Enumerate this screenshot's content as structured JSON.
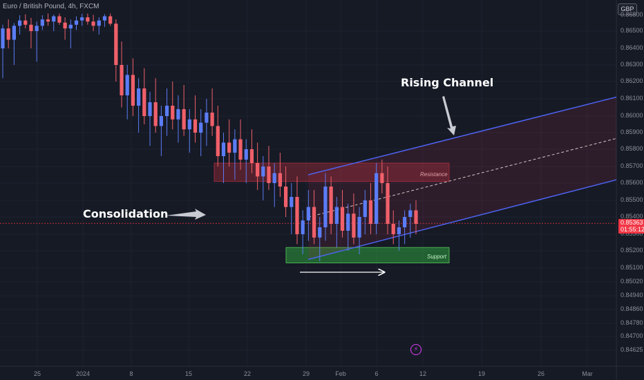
{
  "header": {
    "symbol_line": "Euro / British Pound, 4h, FXCM"
  },
  "currency_button": "GBP",
  "price_axis": {
    "labels": [
      "0.86800",
      "0.86500",
      "0.86400",
      "0.86300",
      "0.86200",
      "0.86100",
      "0.86000",
      "0.85900",
      "0.85800",
      "0.85700",
      "0.85600",
      "0.85500",
      "0.85400",
      "0.85300",
      "0.85200",
      "0.85100",
      "0.85020",
      "0.84940",
      "0.84860",
      "0.84780",
      "0.84700",
      "0.84625"
    ]
  },
  "time_axis": {
    "labels": [
      "25",
      "2024",
      "8",
      "15",
      "22",
      "29",
      "Feb",
      "6",
      "12",
      "19",
      "26",
      "Mar"
    ]
  },
  "current_price": {
    "value": "0.85363",
    "countdown": "01:55:12",
    "color": "#f23645"
  },
  "annotations": {
    "rising_channel": "Rising Channel",
    "consolidation": "Consolidation",
    "resistance": "Resistance",
    "support": "Support"
  },
  "colors": {
    "background": "#161a25",
    "up": "#5b7cf5",
    "down": "#f0606a",
    "channel_line": "#4d63f0",
    "resistance_fill": "#f23645",
    "support_fill": "#2e9e3e"
  },
  "icons": {
    "alert": "lightning-icon"
  },
  "chart_data": {
    "type": "candlestick",
    "symbol": "Euro / British Pound",
    "interval": "4h",
    "source": "FXCM",
    "y_scale": "price (GBP)",
    "current_price": 0.85363,
    "zones": [
      {
        "name": "Resistance",
        "top": 0.8572,
        "bottom": 0.8561
      },
      {
        "name": "Support",
        "top": 0.8522,
        "bottom": 0.8513
      }
    ],
    "channel": {
      "name": "Rising Channel",
      "upper": [
        0.8565,
        0.8611
      ],
      "lower": [
        0.8515,
        0.8562
      ]
    },
    "series": [
      {
        "o": 0.864,
        "h": 0.8662,
        "l": 0.8622,
        "c": 0.8655
      },
      {
        "o": 0.8655,
        "h": 0.8672,
        "l": 0.864,
        "c": 0.8645
      },
      {
        "o": 0.8645,
        "h": 0.8665,
        "l": 0.863,
        "c": 0.866
      },
      {
        "o": 0.866,
        "h": 0.868,
        "l": 0.8648,
        "c": 0.867
      },
      {
        "o": 0.867,
        "h": 0.8685,
        "l": 0.8655,
        "c": 0.8662
      },
      {
        "o": 0.8662,
        "h": 0.8675,
        "l": 0.864,
        "c": 0.865
      },
      {
        "o": 0.865,
        "h": 0.8668,
        "l": 0.8632,
        "c": 0.866
      },
      {
        "o": 0.866,
        "h": 0.868,
        "l": 0.8652,
        "c": 0.8672
      },
      {
        "o": 0.8672,
        "h": 0.869,
        "l": 0.866,
        "c": 0.8668
      },
      {
        "o": 0.8668,
        "h": 0.8684,
        "l": 0.865,
        "c": 0.8678
      },
      {
        "o": 0.8678,
        "h": 0.869,
        "l": 0.8662,
        "c": 0.8666
      },
      {
        "o": 0.8666,
        "h": 0.8676,
        "l": 0.8645,
        "c": 0.8655
      },
      {
        "o": 0.8655,
        "h": 0.8672,
        "l": 0.864,
        "c": 0.8662
      },
      {
        "o": 0.8662,
        "h": 0.8678,
        "l": 0.8652,
        "c": 0.867
      },
      {
        "o": 0.867,
        "h": 0.8688,
        "l": 0.866,
        "c": 0.8676
      },
      {
        "o": 0.8676,
        "h": 0.869,
        "l": 0.8662,
        "c": 0.8668
      },
      {
        "o": 0.8668,
        "h": 0.8682,
        "l": 0.865,
        "c": 0.866
      },
      {
        "o": 0.866,
        "h": 0.8676,
        "l": 0.8648,
        "c": 0.867
      },
      {
        "o": 0.867,
        "h": 0.8686,
        "l": 0.8658,
        "c": 0.8678
      },
      {
        "o": 0.8678,
        "h": 0.869,
        "l": 0.866,
        "c": 0.8664
      },
      {
        "o": 0.8664,
        "h": 0.8672,
        "l": 0.862,
        "c": 0.863
      },
      {
        "o": 0.863,
        "h": 0.8644,
        "l": 0.8605,
        "c": 0.8612
      },
      {
        "o": 0.8612,
        "h": 0.863,
        "l": 0.8598,
        "c": 0.8624
      },
      {
        "o": 0.8624,
        "h": 0.8634,
        "l": 0.86,
        "c": 0.8606
      },
      {
        "o": 0.8606,
        "h": 0.8622,
        "l": 0.859,
        "c": 0.8616
      },
      {
        "o": 0.8616,
        "h": 0.8628,
        "l": 0.8595,
        "c": 0.86
      },
      {
        "o": 0.86,
        "h": 0.8614,
        "l": 0.8582,
        "c": 0.8608
      },
      {
        "o": 0.8608,
        "h": 0.8622,
        "l": 0.859,
        "c": 0.8594
      },
      {
        "o": 0.8594,
        "h": 0.8606,
        "l": 0.8576,
        "c": 0.86
      },
      {
        "o": 0.86,
        "h": 0.8616,
        "l": 0.8588,
        "c": 0.8606
      },
      {
        "o": 0.8606,
        "h": 0.862,
        "l": 0.8592,
        "c": 0.8598
      },
      {
        "o": 0.8598,
        "h": 0.8612,
        "l": 0.8584,
        "c": 0.8604
      },
      {
        "o": 0.8604,
        "h": 0.8618,
        "l": 0.8588,
        "c": 0.8592
      },
      {
        "o": 0.8592,
        "h": 0.8604,
        "l": 0.8578,
        "c": 0.8598
      },
      {
        "o": 0.8598,
        "h": 0.8612,
        "l": 0.8584,
        "c": 0.859
      },
      {
        "o": 0.859,
        "h": 0.8604,
        "l": 0.8576,
        "c": 0.8596
      },
      {
        "o": 0.8596,
        "h": 0.861,
        "l": 0.8582,
        "c": 0.8602
      },
      {
        "o": 0.8602,
        "h": 0.8616,
        "l": 0.8588,
        "c": 0.8594
      },
      {
        "o": 0.8594,
        "h": 0.8606,
        "l": 0.857,
        "c": 0.8576
      },
      {
        "o": 0.8576,
        "h": 0.859,
        "l": 0.856,
        "c": 0.8584
      },
      {
        "o": 0.8584,
        "h": 0.8598,
        "l": 0.857,
        "c": 0.8578
      },
      {
        "o": 0.8578,
        "h": 0.8592,
        "l": 0.8562,
        "c": 0.8586
      },
      {
        "o": 0.8586,
        "h": 0.8598,
        "l": 0.8568,
        "c": 0.8574
      },
      {
        "o": 0.8574,
        "h": 0.8586,
        "l": 0.856,
        "c": 0.858
      },
      {
        "o": 0.858,
        "h": 0.8592,
        "l": 0.8566,
        "c": 0.8572
      },
      {
        "o": 0.8572,
        "h": 0.8584,
        "l": 0.8556,
        "c": 0.8564
      },
      {
        "o": 0.8564,
        "h": 0.8576,
        "l": 0.855,
        "c": 0.857
      },
      {
        "o": 0.857,
        "h": 0.8582,
        "l": 0.8556,
        "c": 0.856
      },
      {
        "o": 0.856,
        "h": 0.8572,
        "l": 0.8546,
        "c": 0.8566
      },
      {
        "o": 0.8566,
        "h": 0.8578,
        "l": 0.8552,
        "c": 0.8558
      },
      {
        "o": 0.8558,
        "h": 0.857,
        "l": 0.854,
        "c": 0.8546
      },
      {
        "o": 0.8546,
        "h": 0.856,
        "l": 0.853,
        "c": 0.8552
      },
      {
        "o": 0.8552,
        "h": 0.8564,
        "l": 0.8524,
        "c": 0.853
      },
      {
        "o": 0.853,
        "h": 0.8544,
        "l": 0.8518,
        "c": 0.8538
      },
      {
        "o": 0.8538,
        "h": 0.8556,
        "l": 0.8526,
        "c": 0.8546
      },
      {
        "o": 0.8546,
        "h": 0.8556,
        "l": 0.8524,
        "c": 0.8528
      },
      {
        "o": 0.8528,
        "h": 0.854,
        "l": 0.8514,
        "c": 0.8534
      },
      {
        "o": 0.8534,
        "h": 0.8566,
        "l": 0.8526,
        "c": 0.8558
      },
      {
        "o": 0.8558,
        "h": 0.8564,
        "l": 0.853,
        "c": 0.8536
      },
      {
        "o": 0.8536,
        "h": 0.8552,
        "l": 0.8522,
        "c": 0.8546
      },
      {
        "o": 0.8546,
        "h": 0.8556,
        "l": 0.8528,
        "c": 0.8532
      },
      {
        "o": 0.8532,
        "h": 0.8548,
        "l": 0.852,
        "c": 0.8542
      },
      {
        "o": 0.8542,
        "h": 0.8554,
        "l": 0.8524,
        "c": 0.8528
      },
      {
        "o": 0.8528,
        "h": 0.8546,
        "l": 0.8518,
        "c": 0.854
      },
      {
        "o": 0.854,
        "h": 0.8556,
        "l": 0.853,
        "c": 0.855
      },
      {
        "o": 0.855,
        "h": 0.856,
        "l": 0.853,
        "c": 0.8536
      },
      {
        "o": 0.8536,
        "h": 0.8572,
        "l": 0.853,
        "c": 0.8566
      },
      {
        "o": 0.8566,
        "h": 0.8574,
        "l": 0.8554,
        "c": 0.856
      },
      {
        "o": 0.856,
        "h": 0.857,
        "l": 0.853,
        "c": 0.8536
      },
      {
        "o": 0.8536,
        "h": 0.8544,
        "l": 0.8524,
        "c": 0.853
      },
      {
        "o": 0.853,
        "h": 0.8538,
        "l": 0.852,
        "c": 0.8534
      },
      {
        "o": 0.8534,
        "h": 0.8544,
        "l": 0.8524,
        "c": 0.854
      },
      {
        "o": 0.854,
        "h": 0.8548,
        "l": 0.8528,
        "c": 0.8544
      },
      {
        "o": 0.8544,
        "h": 0.855,
        "l": 0.853,
        "c": 0.8536
      }
    ]
  }
}
